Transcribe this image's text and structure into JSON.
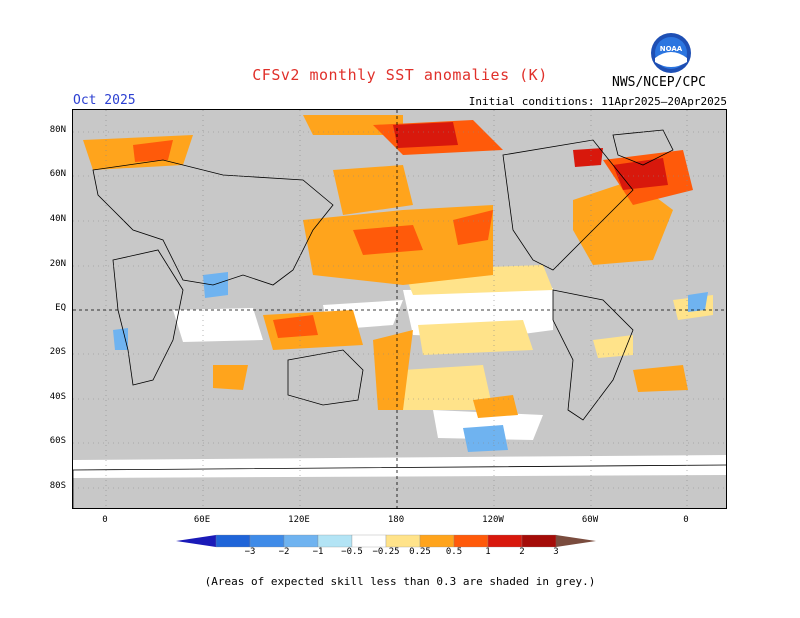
{
  "title": "CFSv2 monthly SST anomalies (K)",
  "valid_month": "Oct 2025",
  "initial_conditions": "Initial conditions: 11Apr2025–20Apr2025",
  "agency": "NWS/NCEP/CPC",
  "logo_text": "NOAA",
  "note": "(Areas of expected skill less than 0.3 are shaded in grey.)",
  "lat_labels": [
    "80N",
    "60N",
    "40N",
    "20N",
    "EQ",
    "20S",
    "40S",
    "60S",
    "80S"
  ],
  "lon_labels": [
    "0",
    "60E",
    "120E",
    "180",
    "120W",
    "60W",
    "0"
  ],
  "colorbar": {
    "labels": [
      "−3",
      "−2",
      "−1",
      "−0.5",
      "−0.25",
      "0.25",
      "0.5",
      "1",
      "2",
      "3"
    ],
    "colors": [
      "#1a1ab8",
      "#1f64d8",
      "#3f8be8",
      "#6fb3f0",
      "#b3e4f5",
      "#ffffff",
      "#ffe38a",
      "#ffa41c",
      "#ff5a0a",
      "#d8180c",
      "#a40c08",
      "#7a4c3e"
    ]
  },
  "colors": {
    "grey": "#c8c8c8",
    "title": "#e0302a",
    "month": "#2b3fd1"
  }
}
